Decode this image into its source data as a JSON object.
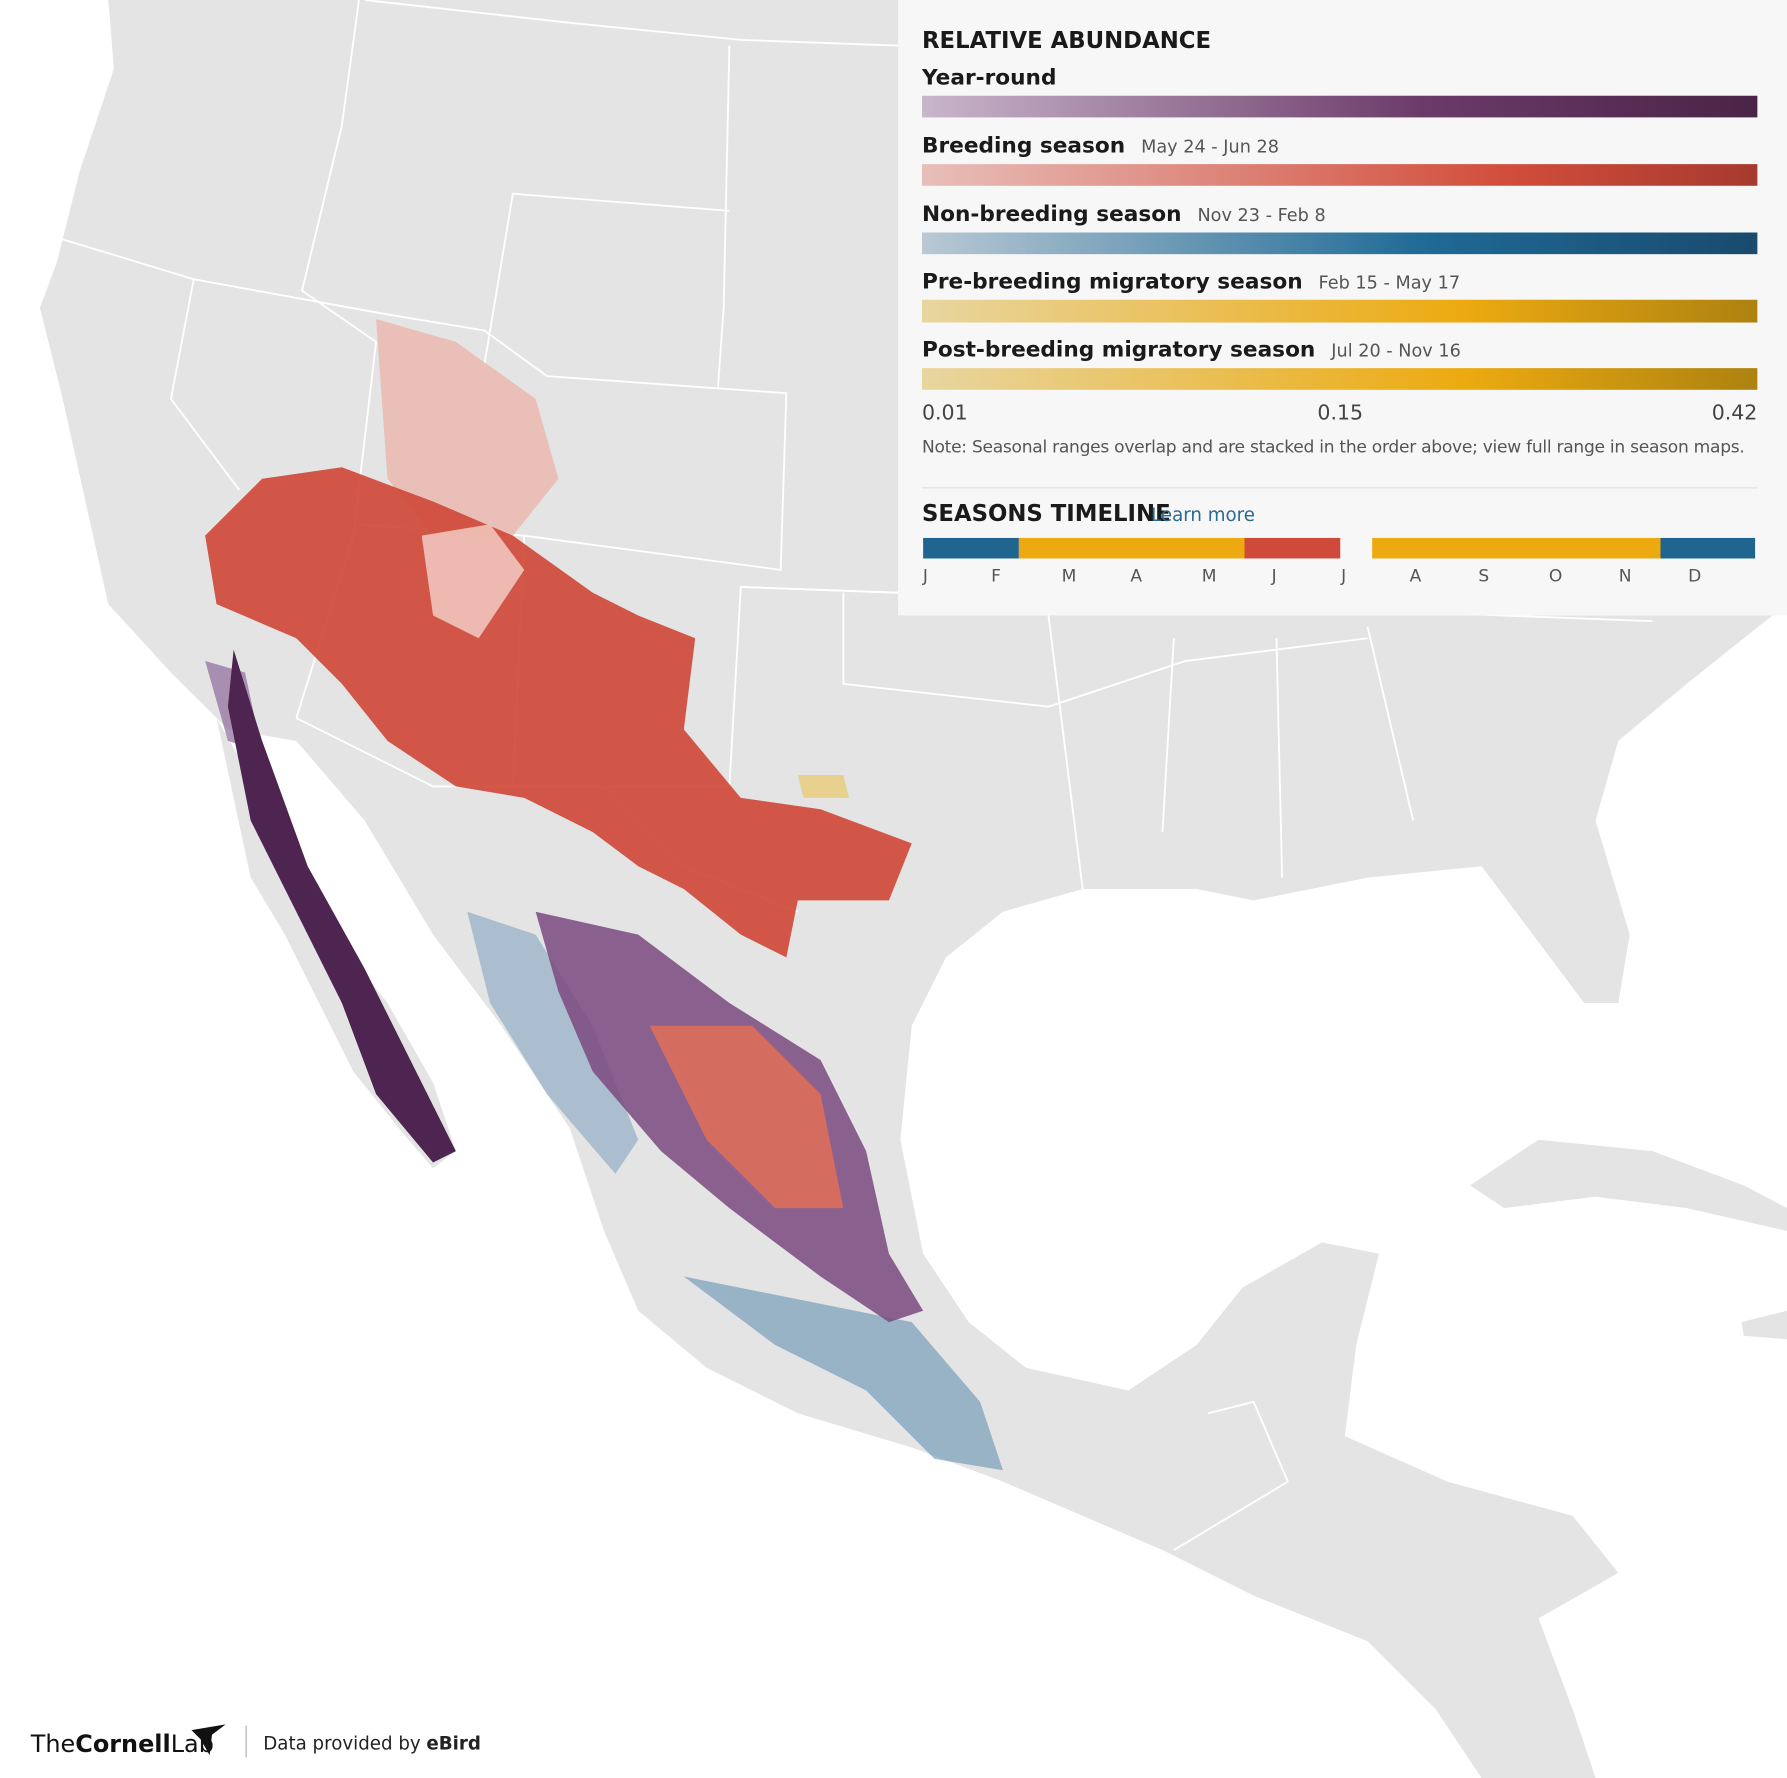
{
  "legend": {
    "title": "RELATIVE ABUNDANCE",
    "seasons": [
      {
        "name": "Year-round"
      },
      {
        "name": "Breeding season",
        "dates": "May 24 - Jun 28"
      },
      {
        "name": "Non-breeding season",
        "dates": "Nov 23 - Feb 8"
      },
      {
        "name": "Pre-breeding migratory season",
        "dates": "Feb 15 - May 17"
      },
      {
        "name": "Post-breeding migratory season",
        "dates": "Jul 20 - Nov 16"
      }
    ],
    "scale": [
      0.01,
      0.15,
      0.42
    ],
    "note": "Note: Seasonal ranges overlap and are stacked in the order above; view full range in season maps."
  },
  "timeline": {
    "title": "SEASONS TIMELINE",
    "link": "Learn more",
    "months": [
      "J",
      "F",
      "M",
      "A",
      "M",
      "J",
      "J",
      "A",
      "S",
      "O",
      "N",
      "D"
    ]
  },
  "footer": {
    "logo_the": "The",
    "logo_cornell": "Cornell",
    "logo_lab": "Lab",
    "credit": "Data provided by",
    "source": "eBird"
  }
}
